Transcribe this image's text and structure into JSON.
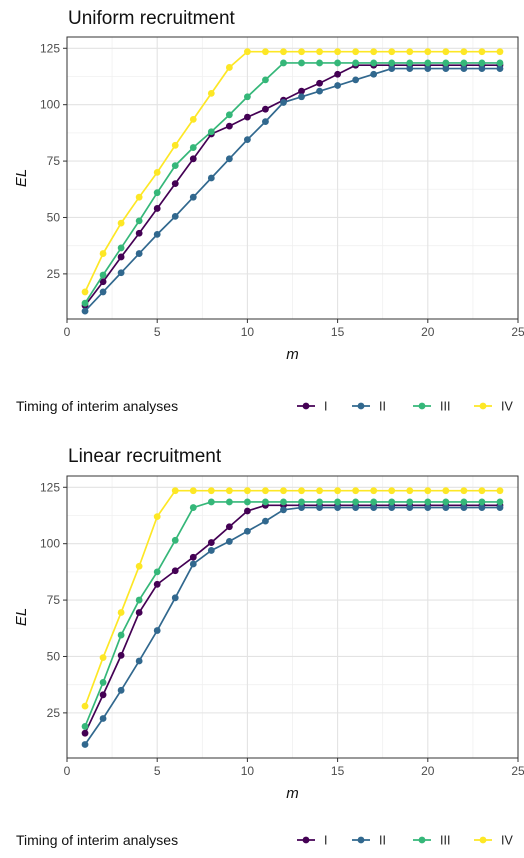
{
  "chart_data": [
    {
      "type": "line",
      "title": "Uniform recruitment",
      "xlabel": "m",
      "ylabel": "EL",
      "xlim": [
        0,
        25
      ],
      "ylim": [
        5,
        130
      ],
      "xticks": [
        0,
        5,
        10,
        15,
        20,
        25
      ],
      "yticks": [
        25,
        50,
        75,
        100,
        125
      ],
      "grid": true,
      "legend_position": "bottom",
      "legend_title": "Timing of interim analyses",
      "x": [
        1,
        2,
        3,
        4,
        5,
        6,
        7,
        8,
        9,
        10,
        11,
        12,
        13,
        14,
        15,
        16,
        17,
        18,
        19,
        20,
        21,
        22,
        23,
        24
      ],
      "series": [
        {
          "name": "I",
          "color": "#440154",
          "values": [
            11,
            21.5,
            32.5,
            43,
            54,
            65,
            76,
            87,
            90.5,
            94.5,
            98,
            102,
            106,
            109.5,
            113.5,
            117.5,
            117.5,
            117.5,
            117.5,
            117.5,
            117.5,
            117.5,
            117.5,
            117.5
          ]
        },
        {
          "name": "II",
          "color": "#31688e",
          "values": [
            8.5,
            17,
            25.5,
            34,
            42.5,
            50.5,
            59,
            67.5,
            76,
            84.5,
            92.5,
            101,
            103.5,
            106,
            108.5,
            111,
            113.5,
            116,
            116,
            116,
            116,
            116,
            116,
            116
          ]
        },
        {
          "name": "III",
          "color": "#35b779",
          "values": [
            12,
            24.5,
            36.5,
            48.5,
            61,
            73,
            81,
            88,
            95.5,
            103.5,
            111,
            118.5,
            118.5,
            118.5,
            118.5,
            118.5,
            118.5,
            118.5,
            118.5,
            118.5,
            118.5,
            118.5,
            118.5,
            118.5
          ]
        },
        {
          "name": "IV",
          "color": "#fde725",
          "values": [
            17,
            34,
            47.5,
            59,
            70,
            82,
            93.5,
            105,
            116.5,
            123.5,
            123.5,
            123.5,
            123.5,
            123.5,
            123.5,
            123.5,
            123.5,
            123.5,
            123.5,
            123.5,
            123.5,
            123.5,
            123.5,
            123.5
          ]
        }
      ]
    },
    {
      "type": "line",
      "title": "Linear recruitment",
      "xlabel": "m",
      "ylabel": "EL",
      "xlim": [
        0,
        25
      ],
      "ylim": [
        5,
        130
      ],
      "xticks": [
        0,
        5,
        10,
        15,
        20,
        25
      ],
      "yticks": [
        25,
        50,
        75,
        100,
        125
      ],
      "grid": true,
      "legend_position": "bottom",
      "legend_title": "Timing of interim analyses",
      "x": [
        1,
        2,
        3,
        4,
        5,
        6,
        7,
        8,
        9,
        10,
        11,
        12,
        13,
        14,
        15,
        16,
        17,
        18,
        19,
        20,
        21,
        22,
        23,
        24
      ],
      "series": [
        {
          "name": "I",
          "color": "#440154",
          "values": [
            16,
            33,
            50.5,
            69.5,
            82,
            88,
            94,
            100.5,
            107.5,
            114.5,
            117,
            117,
            117,
            117,
            117,
            117,
            117,
            117,
            117,
            117,
            117,
            117,
            117,
            117
          ]
        },
        {
          "name": "II",
          "color": "#31688e",
          "values": [
            11,
            22.5,
            35,
            48,
            61.5,
            76,
            91,
            97,
            101,
            105.5,
            110,
            115,
            116,
            116,
            116,
            116,
            116,
            116,
            116,
            116,
            116,
            116,
            116,
            116
          ]
        },
        {
          "name": "III",
          "color": "#35b779",
          "values": [
            19,
            38.5,
            59.5,
            75,
            87.5,
            101.5,
            116,
            118.5,
            118.5,
            118.5,
            118.5,
            118.5,
            118.5,
            118.5,
            118.5,
            118.5,
            118.5,
            118.5,
            118.5,
            118.5,
            118.5,
            118.5,
            118.5,
            118.5
          ]
        },
        {
          "name": "IV",
          "color": "#fde725",
          "values": [
            28,
            49.5,
            69.5,
            90,
            112,
            123.5,
            123.5,
            123.5,
            123.5,
            123.5,
            123.5,
            123.5,
            123.5,
            123.5,
            123.5,
            123.5,
            123.5,
            123.5,
            123.5,
            123.5,
            123.5,
            123.5,
            123.5,
            123.5
          ]
        }
      ]
    }
  ]
}
